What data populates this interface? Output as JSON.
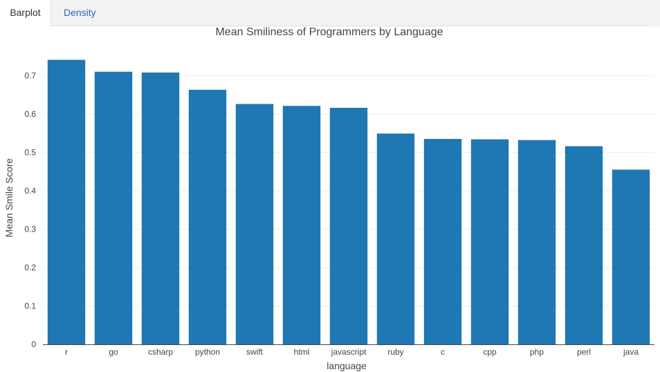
{
  "tabs": [
    {
      "label": "Barplot",
      "active": true
    },
    {
      "label": "Density",
      "active": false
    }
  ],
  "chart_data": {
    "type": "bar",
    "title": "Mean Smiliness of Programmers by Language",
    "xlabel": "language",
    "ylabel": "Mean Smile Score",
    "categories": [
      "r",
      "go",
      "csharp",
      "python",
      "swift",
      "html",
      "javascript",
      "ruby",
      "c",
      "cpp",
      "php",
      "perl",
      "java"
    ],
    "values": [
      0.741,
      0.71,
      0.708,
      0.663,
      0.626,
      0.621,
      0.616,
      0.549,
      0.535,
      0.534,
      0.532,
      0.516,
      0.455
    ],
    "ylim": [
      0,
      0.78
    ],
    "yticks": [
      0,
      0.1,
      0.2,
      0.3,
      0.4,
      0.5,
      0.6,
      0.7
    ],
    "ytick_labels": [
      "0",
      "0.1",
      "0.2",
      "0.3",
      "0.4",
      "0.5",
      "0.6",
      "0.7"
    ],
    "bar_color": "#1f77b4",
    "grid": true,
    "legend": "none"
  }
}
